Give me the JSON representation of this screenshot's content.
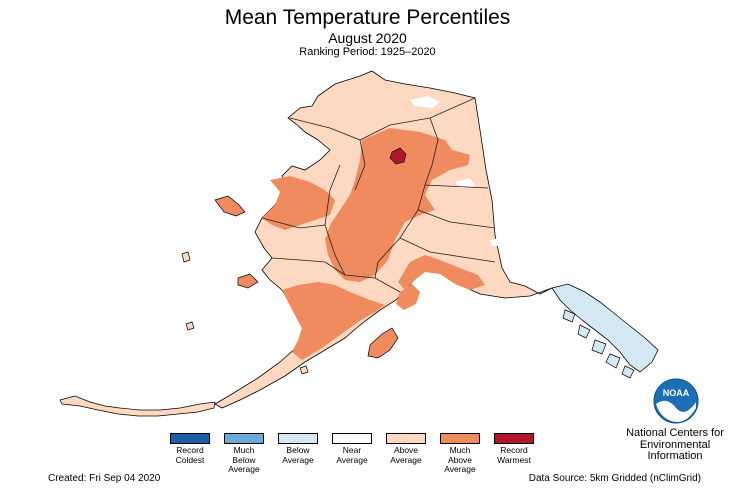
{
  "title": "Mean Temperature Percentiles",
  "subtitle": "August 2020",
  "ranking_period": "Ranking Period: 1925–2020",
  "legend": [
    {
      "label": "Record\nColdest",
      "color": "#1f5fa8"
    },
    {
      "label": "Much\nBelow\nAverage",
      "color": "#6aaad6"
    },
    {
      "label": "Below\nAverage",
      "color": "#d4e8f4"
    },
    {
      "label": "Near\nAverage",
      "color": "#ffffff"
    },
    {
      "label": "Above\nAverage",
      "color": "#fcd9c0"
    },
    {
      "label": "Much\nAbove\nAverage",
      "color": "#ef8b5e"
    },
    {
      "label": "Record\nWarmest",
      "color": "#b3162a"
    }
  ],
  "created": "Created: Fri Sep 04 2020",
  "data_source": "Data Source: 5km Gridded (nClimGrid)",
  "org_name": "National Centers for Environmental Information",
  "logo_text": "NOAA",
  "colors": {
    "above": "#fcd9c0",
    "much_above": "#ef8b5e",
    "record_warm": "#b3162a",
    "below": "#d4e8f4",
    "near": "#ffffff",
    "noaa_blue": "#1a6fb5"
  }
}
